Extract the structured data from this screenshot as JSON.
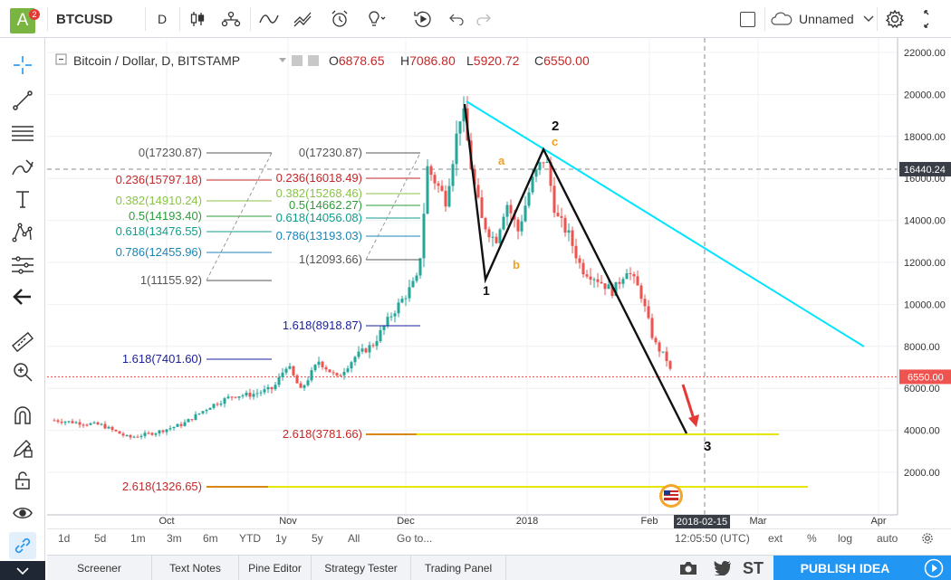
{
  "topbar": {
    "user_badge_letter": "A",
    "notification_count": "2",
    "symbol": "BTCUSD",
    "interval": "D",
    "layout_name": "Unnamed"
  },
  "legend": {
    "title": "Bitcoin / Dollar, D, BITSTAMP",
    "o_label": "O",
    "o_value": "6878.65",
    "h_label": "H",
    "h_value": "7086.80",
    "l_label": "L",
    "l_value": "5920.72",
    "c_label": "C",
    "c_value": "6550.00"
  },
  "price_axis": {
    "ticks": [
      "22000.00",
      "20000.00",
      "18000.00",
      "16000.00",
      "14000.00",
      "12000.00",
      "10000.00",
      "8000.00",
      "6000.00",
      "4000.00",
      "2000.00"
    ],
    "crosshair_price": "16440.24",
    "last_price": "6550.00"
  },
  "time_axis": {
    "labels": [
      "Oct",
      "Nov",
      "Dec",
      "2018",
      "Feb",
      "Mar",
      "Apr"
    ],
    "crosshair_date": "2018-02-15"
  },
  "fib_left": [
    {
      "text": "0(17230.87)",
      "color": "#555555"
    },
    {
      "text": "0.236(15797.18)",
      "color": "#c62828"
    },
    {
      "text": "0.382(14910.24)",
      "color": "#8bc34a"
    },
    {
      "text": "0.5(14193.40)",
      "color": "#2e9d3a"
    },
    {
      "text": "0.618(13476.55)",
      "color": "#109e8c"
    },
    {
      "text": "0.786(12455.96)",
      "color": "#1a86b8"
    },
    {
      "text": "1(11155.92)",
      "color": "#555555"
    },
    {
      "text": "1.618(7401.60)",
      "color": "#1a1f9c"
    },
    {
      "text": "2.618(1326.65)",
      "color": "#c62828"
    }
  ],
  "fib_right": [
    {
      "text": "0(17230.87)",
      "color": "#555555"
    },
    {
      "text": "0.236(16018.49)",
      "color": "#c62828"
    },
    {
      "text": "0.382(15268.46)",
      "color": "#8bc34a"
    },
    {
      "text": "0.5(14662.27)",
      "color": "#2e9d3a"
    },
    {
      "text": "0.618(14056.08)",
      "color": "#109e8c"
    },
    {
      "text": "0.786(13193.03)",
      "color": "#1a86b8"
    },
    {
      "text": "1(12093.66)",
      "color": "#555555"
    },
    {
      "text": "1.618(8918.87)",
      "color": "#1a1f9c"
    },
    {
      "text": "2.618(3781.66)",
      "color": "#c62828"
    }
  ],
  "wave_labels": {
    "w1": "1",
    "w2": "2",
    "w3": "3",
    "wa": "a",
    "wb": "b",
    "wc": "c"
  },
  "colors": {
    "up": "#26a69a",
    "down": "#ef5350",
    "trendline": "#00e5ff",
    "fib_target": "#e6e600",
    "arrow": "#e53935",
    "accent": "#2196f3"
  },
  "range_bar": {
    "buttons": [
      "1d",
      "5d",
      "1m",
      "3m",
      "6m",
      "YTD",
      "1y",
      "5y",
      "All"
    ],
    "goto": "Go to...",
    "clock": "12:05:50 (UTC)",
    "ext": "ext",
    "percent": "%",
    "log": "log",
    "auto": "auto"
  },
  "bottom_tabs": [
    "Screener",
    "Text Notes",
    "Pine Editor",
    "Strategy Tester",
    "Trading Panel"
  ],
  "publish": "PUBLISH IDEA",
  "social": {
    "st": "ST"
  },
  "icons": [
    "crosshair-icon",
    "trend-line-icon",
    "fib-icon",
    "brush-icon",
    "text-icon",
    "pattern-icon",
    "prediction-icon",
    "back-arrow-icon",
    "ruler-icon",
    "zoom-in-icon",
    "magnet-icon",
    "lock-drawing-icon",
    "unlock-icon",
    "eye-icon",
    "link-icon"
  ]
}
